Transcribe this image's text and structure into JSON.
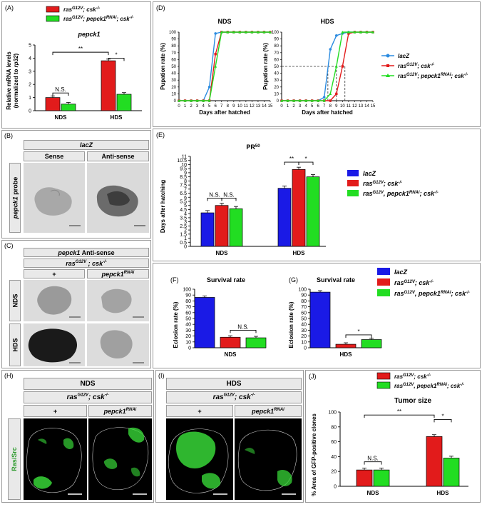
{
  "panels": {
    "A": {
      "label": "(A)",
      "title": "pepck1",
      "ylabel_line1": "Relative mRNA levels",
      "ylabel_line2": "(normalized to rp32)",
      "legend": [
        "ras^G12V; csk-/-",
        "ras^G12V; pepck1^RNAi; csk-/-"
      ],
      "sig": [
        "N.S.",
        "**",
        "*"
      ]
    },
    "B": {
      "label": "(B)",
      "header": "lacZ",
      "col1": "Sense",
      "col2": "Anti-sense",
      "row": "pepck1 probe"
    },
    "C": {
      "label": "(C)",
      "header1": "pepck1 Anti-sense",
      "header2": "ras^G12V ; csk-/-",
      "col1": "+",
      "col2": "pepck1^RNAi",
      "row1": "NDS",
      "row2": "HDS"
    },
    "D": {
      "label": "(D)",
      "xlabel": "Days after hatched",
      "ylabel": "Pupation rate (%)",
      "legend": [
        "lacZ",
        "ras^G12V; csk-/-",
        "ras^G12V; pepck1^RNAi; csk-/-"
      ]
    },
    "E": {
      "label": "(E)",
      "title": "PR50",
      "ylabel": "Days after hatching",
      "legend": [
        "lacZ",
        "ras^G12V; csk-/-",
        "ras^G12V, pepck1^RNAi; csk-/-"
      ],
      "sig": [
        "N.S.",
        "N.S.",
        "**",
        "*"
      ]
    },
    "F": {
      "label": "(F)",
      "title": "Survival rate",
      "ylabel": "Eclosion rate (%)",
      "sig": "N.S."
    },
    "G": {
      "label": "(G)",
      "title": "Survival rate",
      "ylabel": "Eclosion rate (%)",
      "sig": "*",
      "legend": [
        "lacZ",
        "ras^G12V; csk-/-",
        "ras^G12V, pepck1^RNAi; csk-/-"
      ]
    },
    "H": {
      "label": "(H)",
      "header1": "NDS",
      "header2": "ras^G12V; csk-/-",
      "col1": "+",
      "col2": "pepck1^RNAi",
      "row": "Ras/Src"
    },
    "I": {
      "label": "(I)",
      "header1": "HDS",
      "header2": "ras^G12V; csk-/-",
      "col1": "+",
      "col2": "pepck1^RNAi"
    },
    "J": {
      "label": "(J)",
      "title": "Tumor size",
      "ylabel": "% Area of GFP-positive clones",
      "legend": [
        "ras^G12V; csk-/-",
        "ras^G12V, pepck1^RNAi; csk-/-"
      ],
      "sig": [
        "N.S.",
        "**",
        "*"
      ]
    }
  },
  "colors": {
    "lacz": "#1a1ae6",
    "ras": "#e21b1b",
    "pepck": "#22dd22",
    "lacz_line": "#2b8be0",
    "gfp": "#37d637"
  },
  "chart_data": [
    {
      "id": "A",
      "type": "bar",
      "title": "pepck1",
      "categories": [
        "NDS",
        "HDS"
      ],
      "series": [
        {
          "name": "ras^G12V; csk-/-",
          "values": [
            1.0,
            3.8
          ]
        },
        {
          "name": "ras^G12V; pepck1^RNAi; csk-/-",
          "values": [
            0.5,
            1.25
          ]
        }
      ],
      "ylabel": "Relative mRNA levels (normalized to rp32)",
      "ylim": [
        0,
        5
      ],
      "yticks": [
        0,
        1,
        2,
        3,
        4,
        5
      ]
    },
    {
      "id": "D-NDS",
      "type": "line",
      "title": "NDS",
      "x": [
        0,
        1,
        2,
        3,
        4,
        5,
        6,
        7,
        8,
        9,
        10,
        11,
        12,
        13,
        14,
        15
      ],
      "series": [
        {
          "name": "lacZ",
          "values": [
            0,
            0,
            0,
            0,
            0,
            20,
            98,
            100,
            100,
            100,
            100,
            100,
            100,
            100,
            100,
            100
          ]
        },
        {
          "name": "ras^G12V; csk-/-",
          "values": [
            0,
            0,
            0,
            0,
            0,
            0,
            68,
            100,
            100,
            100,
            100,
            100,
            100,
            100,
            100,
            100
          ]
        },
        {
          "name": "ras^G12V; pepck1^RNAi; csk-/-",
          "values": [
            0,
            0,
            0,
            0,
            0,
            0,
            50,
            100,
            100,
            100,
            100,
            100,
            100,
            100,
            100,
            100
          ]
        }
      ],
      "xlabel": "Days after hatched",
      "ylabel": "Pupation rate (%)",
      "ylim": [
        0,
        100
      ],
      "yticks": [
        0,
        10,
        20,
        30,
        40,
        50,
        60,
        70,
        80,
        90,
        100
      ]
    },
    {
      "id": "D-HDS",
      "type": "line",
      "title": "HDS",
      "x": [
        0,
        1,
        2,
        3,
        4,
        5,
        6,
        7,
        8,
        9,
        10,
        11,
        12,
        13,
        14,
        15
      ],
      "series": [
        {
          "name": "lacZ",
          "values": [
            0,
            0,
            0,
            0,
            0,
            0,
            0,
            5,
            75,
            95,
            98,
            100,
            100,
            100,
            100,
            100
          ]
        },
        {
          "name": "ras^G12V; csk-/-",
          "values": [
            0,
            0,
            0,
            0,
            0,
            0,
            0,
            0,
            0,
            10,
            50,
            98,
            100,
            100,
            100,
            100
          ]
        },
        {
          "name": "ras^G12V; pepck1^RNAi; csk-/-",
          "values": [
            0,
            0,
            0,
            0,
            0,
            0,
            0,
            0,
            10,
            50,
            100,
            100,
            100,
            100,
            100,
            100
          ]
        }
      ],
      "xlabel": "Days after hatched",
      "ylabel": "Pupation rate (%)",
      "ylim": [
        0,
        100
      ],
      "yticks": [
        0,
        10,
        20,
        30,
        40,
        50,
        60,
        70,
        80,
        90,
        100
      ]
    },
    {
      "id": "E",
      "type": "bar",
      "title": "PR50",
      "categories": [
        "NDS",
        "HDS"
      ],
      "series": [
        {
          "name": "lacZ",
          "values": [
            4.1,
            7.1
          ]
        },
        {
          "name": "ras^G12V; csk-/-",
          "values": [
            5.0,
            9.4
          ]
        },
        {
          "name": "ras^G12V, pepck1^RNAi; csk-/-",
          "values": [
            4.6,
            8.5
          ]
        }
      ],
      "ylabel": "Days after hatching",
      "ylim": [
        0,
        11
      ],
      "yticks": [
        0,
        0.5,
        1,
        1.5,
        2,
        2.5,
        3,
        3.5,
        4,
        4.5,
        5,
        5.5,
        6,
        6.5,
        7,
        7.5,
        8,
        8.5,
        9,
        9.5,
        10,
        10.5,
        11
      ]
    },
    {
      "id": "F",
      "type": "bar",
      "title": "Survival rate",
      "categories": [
        "NDS"
      ],
      "series": [
        {
          "name": "lacZ",
          "values": [
            86
          ]
        },
        {
          "name": "ras^G12V; csk-/-",
          "values": [
            18
          ]
        },
        {
          "name": "ras^G12V, pepck1^RNAi; csk-/-",
          "values": [
            17
          ]
        }
      ],
      "ylabel": "Eclosion rate (%)",
      "ylim": [
        0,
        100
      ],
      "yticks": [
        0,
        10,
        20,
        30,
        40,
        50,
        60,
        70,
        80,
        90,
        100
      ]
    },
    {
      "id": "G",
      "type": "bar",
      "title": "Survival rate",
      "categories": [
        "HDS"
      ],
      "series": [
        {
          "name": "lacZ",
          "values": [
            95
          ]
        },
        {
          "name": "ras^G12V; csk-/-",
          "values": [
            6
          ]
        },
        {
          "name": "ras^G12V, pepck1^RNAi; csk-/-",
          "values": [
            14
          ]
        }
      ],
      "ylabel": "Eclosion rate (%)",
      "ylim": [
        0,
        100
      ],
      "yticks": [
        0,
        10,
        20,
        30,
        40,
        50,
        60,
        70,
        80,
        90,
        100
      ]
    },
    {
      "id": "J",
      "type": "bar",
      "title": "Tumor size",
      "categories": [
        "NDS",
        "HDS"
      ],
      "series": [
        {
          "name": "ras^G12V; csk-/-",
          "values": [
            22,
            67
          ]
        },
        {
          "name": "ras^G12V, pepck1^RNAi; csk-/-",
          "values": [
            22,
            38
          ]
        }
      ],
      "ylabel": "% Area of GFP-positive clones",
      "ylim": [
        0,
        100
      ],
      "yticks": [
        0,
        20,
        40,
        60,
        80,
        100
      ]
    }
  ]
}
